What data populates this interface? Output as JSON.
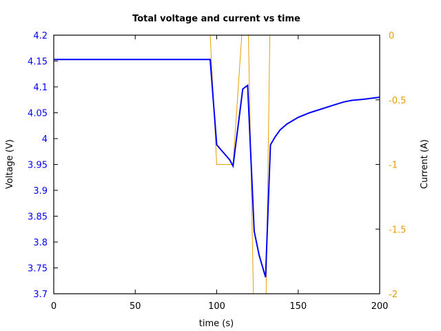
{
  "chart_data": {
    "type": "line",
    "title": "Total voltage and current vs time",
    "xlabel": "time (s)",
    "ylabel": "Voltage (V)",
    "y2label": "Current (A)",
    "xlim": [
      0,
      200
    ],
    "ylim": [
      3.7,
      4.2
    ],
    "y2lim": [
      -2,
      0
    ],
    "grid": false,
    "x_ticks": [
      "0",
      "50",
      "100",
      "150",
      "200"
    ],
    "y_ticks": [
      "3.7",
      "3.75",
      "3.8",
      "3.85",
      "3.9",
      "3.95",
      "4",
      "4.05",
      "4.1",
      "4.15",
      "4.2"
    ],
    "y2_ticks": [
      "-2",
      "-1.5",
      "-1",
      "-0.5",
      "0"
    ],
    "colors": {
      "voltage": "#0000ff",
      "current": "#e69f00",
      "axes": "#000000"
    },
    "series": [
      {
        "name": "Voltage",
        "axis": "left",
        "x": [
          0,
          96,
          100,
          108,
          110,
          116,
          119,
          123,
          126,
          130,
          133,
          136,
          139,
          143,
          150,
          157,
          165,
          172,
          178,
          183,
          190,
          200
        ],
        "values": [
          4.153,
          4.153,
          3.988,
          3.959,
          3.947,
          4.096,
          4.103,
          3.821,
          3.775,
          3.732,
          3.988,
          4.004,
          4.017,
          4.028,
          4.041,
          4.05,
          4.058,
          4.065,
          4.071,
          4.074,
          4.076,
          4.08
        ]
      },
      {
        "name": "Current",
        "axis": "right",
        "x": [
          96,
          100,
          110,
          117,
          119,
          123,
          130,
          133
        ],
        "values": [
          0,
          -1,
          -1,
          0.3,
          0.3,
          -2.3,
          -2.3,
          0.3
        ]
      }
    ]
  }
}
